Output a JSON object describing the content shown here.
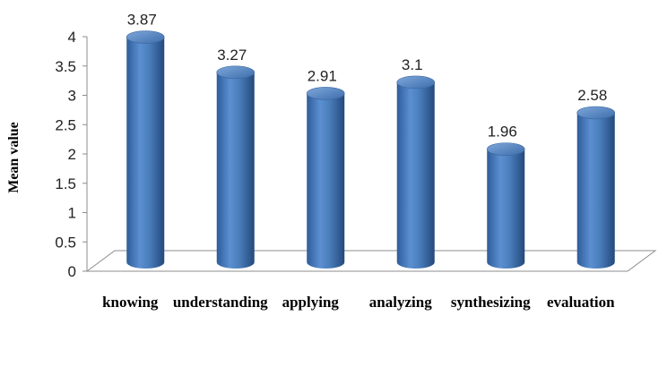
{
  "chart_data": {
    "type": "bar",
    "categories": [
      "knowing",
      "understanding",
      "applying",
      "analyzing",
      "synthesizing",
      "evaluation"
    ],
    "values": [
      3.87,
      3.27,
      2.91,
      3.1,
      1.96,
      2.58
    ],
    "value_labels": [
      "3.87",
      "3.27",
      "2.91",
      "3.1",
      "1.96",
      "2.58"
    ],
    "ylabel": "Mean value",
    "xlabel": "",
    "ylim": [
      0,
      4
    ],
    "yticks": [
      "0",
      "0.5",
      "1",
      "1.5",
      "2",
      "2.5",
      "3",
      "3.5",
      "4"
    ],
    "grid": false,
    "legend": false,
    "style": "3d-cylinder",
    "bar_color": "#4A7EBB"
  }
}
